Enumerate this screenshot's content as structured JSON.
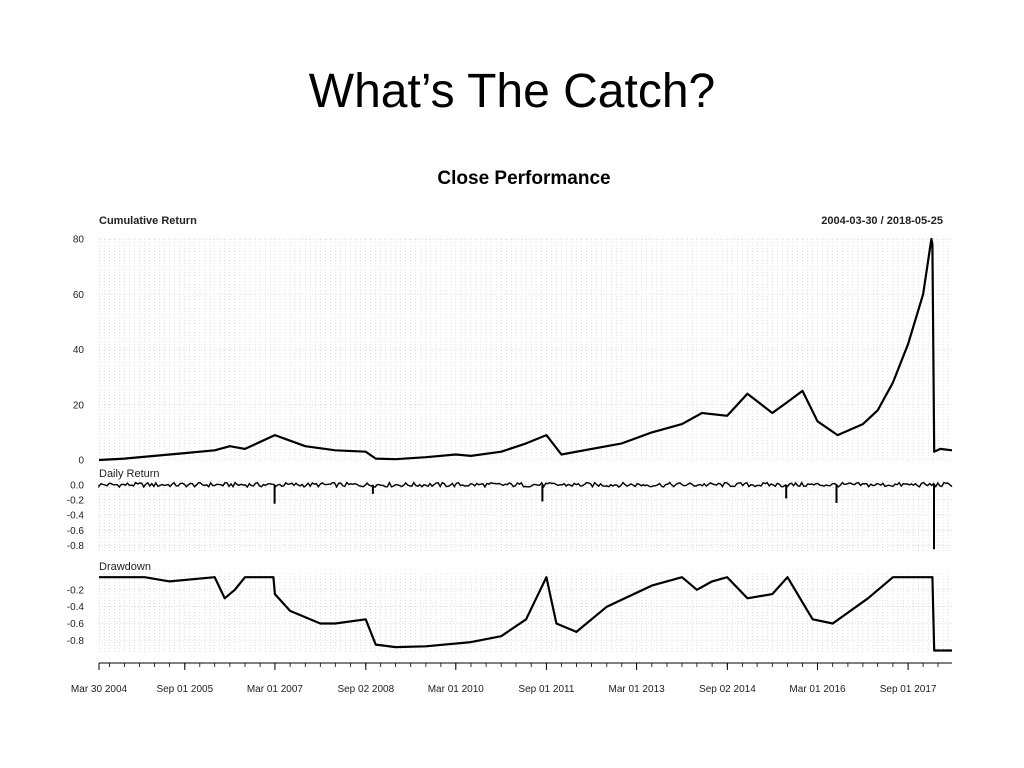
{
  "slide": {
    "title": "What’s The Catch?"
  },
  "chart_data": {
    "type": "line",
    "title": "Close Performance",
    "date_range": "2004-03-30 / 2018-05-25",
    "x_axis": {
      "start": "2004-03-30",
      "end": "2018-05-25",
      "tick_labels": [
        "Mar 30 2004",
        "Sep 01 2005",
        "Mar 01 2007",
        "Sep 02 2008",
        "Mar 01 2010",
        "Sep 01 2011",
        "Mar 01 2013",
        "Sep 02 2014",
        "Mar 01 2016",
        "Sep 01 2017"
      ],
      "tick_dates": [
        "2004-03-30",
        "2005-09-01",
        "2007-03-01",
        "2008-09-02",
        "2010-03-01",
        "2011-09-01",
        "2013-03-01",
        "2014-09-02",
        "2016-03-01",
        "2017-09-01"
      ]
    },
    "grid": true,
    "panels": [
      {
        "name": "Cumulative Return",
        "ylim": [
          0,
          80
        ],
        "yticks": [
          "0",
          "20",
          "40",
          "60",
          "80"
        ],
        "x": [
          "2004-03-30",
          "2004-09-01",
          "2005-03-01",
          "2005-09-01",
          "2006-03-01",
          "2006-06-01",
          "2006-09-01",
          "2007-03-01",
          "2007-06-01",
          "2007-09-01",
          "2008-03-01",
          "2008-09-01",
          "2008-11-01",
          "2009-03-01",
          "2009-09-01",
          "2010-03-01",
          "2010-06-01",
          "2010-12-01",
          "2011-05-01",
          "2011-09-01",
          "2011-12-01",
          "2012-06-01",
          "2012-12-01",
          "2013-06-01",
          "2013-12-01",
          "2014-04-01",
          "2014-09-01",
          "2015-01-01",
          "2015-06-01",
          "2015-09-01",
          "2015-12-01",
          "2016-03-01",
          "2016-07-01",
          "2016-12-01",
          "2017-03-01",
          "2017-06-01",
          "2017-09-01",
          "2017-12-01",
          "2018-01-20",
          "2018-01-26",
          "2018-02-06",
          "2018-03-15",
          "2018-05-25"
        ],
        "values": [
          0,
          0.5,
          1.5,
          2.5,
          3.5,
          5,
          4,
          9,
          7,
          5,
          3.5,
          3,
          0.5,
          0.3,
          1,
          2,
          1.5,
          3,
          6,
          9,
          2,
          4,
          6,
          10,
          13,
          17,
          16,
          24,
          17,
          21,
          25,
          14,
          9,
          13,
          18,
          28,
          42,
          60,
          80,
          78,
          3,
          4,
          3.5
        ]
      },
      {
        "name": "Daily Return",
        "ylim": [
          -0.9,
          0.05
        ],
        "yticks": [
          "0.0",
          "-0.2",
          "-0.4",
          "-0.6",
          "-0.8"
        ],
        "spikes": [
          {
            "x": "2007-02-27",
            "value": -0.25
          },
          {
            "x": "2008-10-15",
            "value": -0.12
          },
          {
            "x": "2011-08-08",
            "value": -0.22
          },
          {
            "x": "2015-08-24",
            "value": -0.18
          },
          {
            "x": "2016-06-24",
            "value": -0.24
          },
          {
            "x": "2018-02-05",
            "value": -0.85
          }
        ]
      },
      {
        "name": "Drawdown",
        "ylim": [
          -0.95,
          0
        ],
        "yticks": [
          "-0.2",
          "-0.4",
          "-0.6",
          "-0.8"
        ],
        "x": [
          "2004-03-30",
          "2005-01-01",
          "2005-06-01",
          "2006-03-01",
          "2006-05-01",
          "2006-07-01",
          "2006-09-01",
          "2007-02-20",
          "2007-03-01",
          "2007-06-01",
          "2007-12-01",
          "2008-03-01",
          "2008-09-01",
          "2008-11-01",
          "2009-03-01",
          "2009-09-01",
          "2010-06-01",
          "2010-12-01",
          "2011-05-01",
          "2011-09-01",
          "2011-11-01",
          "2012-03-01",
          "2012-09-01",
          "2013-06-01",
          "2013-12-01",
          "2014-03-01",
          "2014-06-01",
          "2014-09-01",
          "2015-01-01",
          "2015-06-01",
          "2015-09-01",
          "2016-01-01",
          "2016-02-01",
          "2016-06-01",
          "2017-01-01",
          "2017-06-01",
          "2018-01-26",
          "2018-02-06",
          "2018-05-25"
        ],
        "values": [
          -0.05,
          -0.05,
          -0.1,
          -0.05,
          -0.3,
          -0.2,
          -0.05,
          -0.05,
          -0.25,
          -0.45,
          -0.6,
          -0.6,
          -0.55,
          -0.85,
          -0.88,
          -0.87,
          -0.82,
          -0.75,
          -0.55,
          -0.05,
          -0.6,
          -0.7,
          -0.4,
          -0.15,
          -0.05,
          -0.2,
          -0.1,
          -0.05,
          -0.3,
          -0.25,
          -0.05,
          -0.45,
          -0.55,
          -0.6,
          -0.3,
          -0.05,
          -0.05,
          -0.92,
          -0.92
        ]
      }
    ]
  }
}
